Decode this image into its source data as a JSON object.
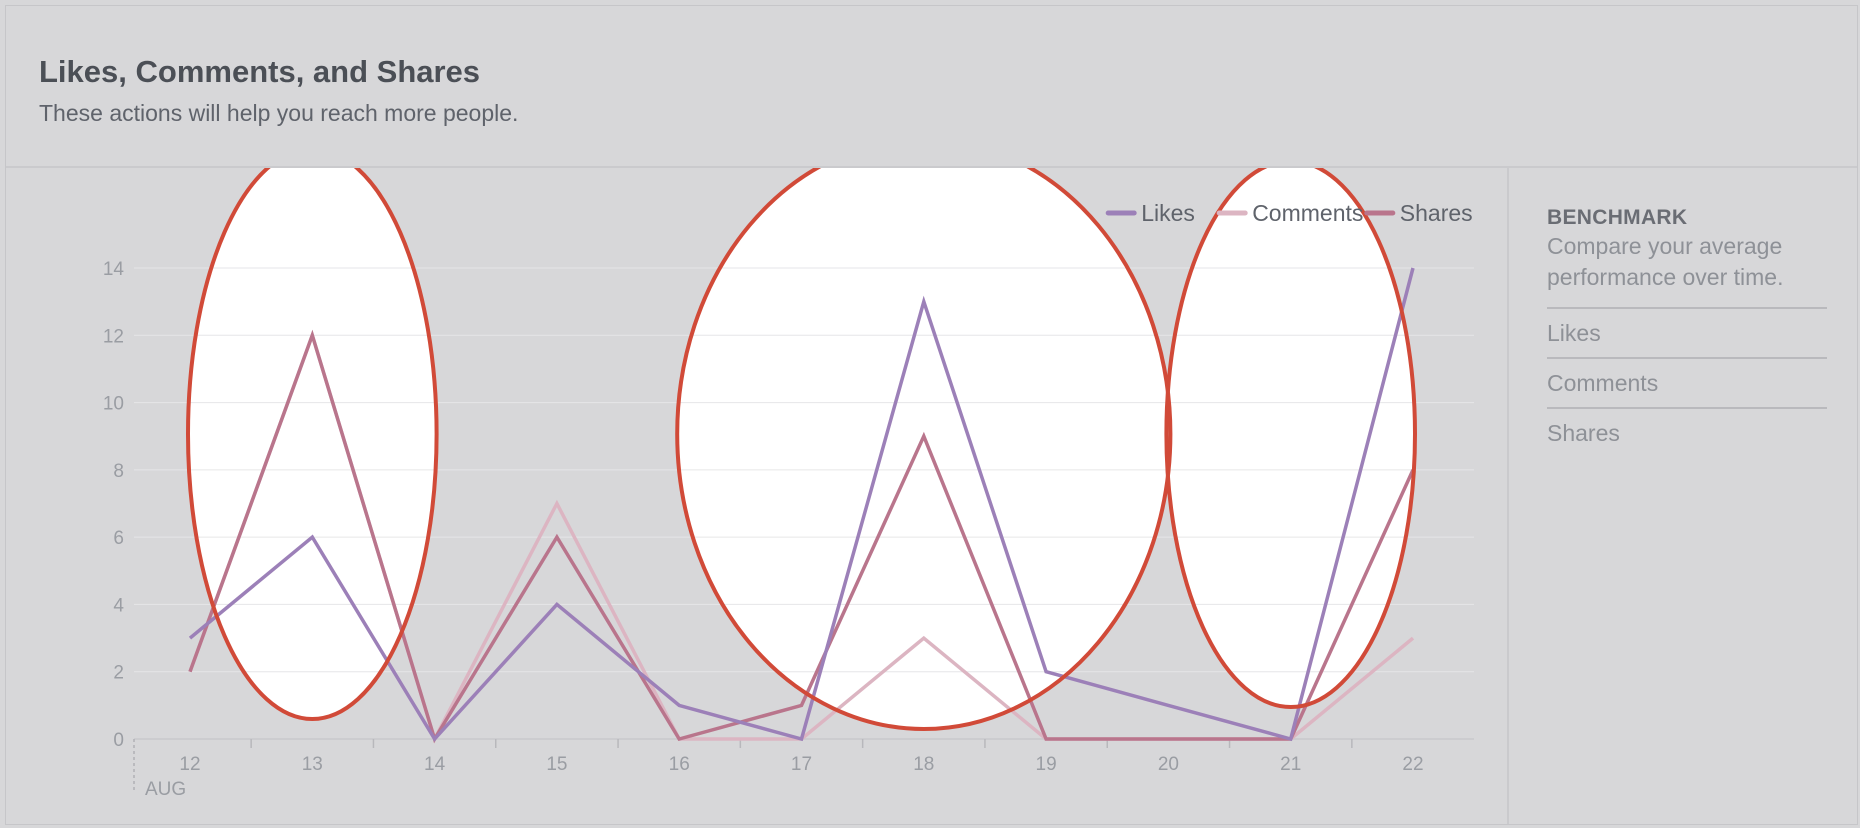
{
  "header": {
    "title": "Likes, Comments, and Shares",
    "subtitle": "These actions will help you reach more people."
  },
  "benchmark": {
    "title": "BENCHMARK",
    "description": "Compare your average performance over time.",
    "items": [
      "Likes",
      "Comments",
      "Shares"
    ]
  },
  "chart_data": {
    "type": "line",
    "x": [
      "12",
      "13",
      "14",
      "15",
      "16",
      "17",
      "18",
      "19",
      "20",
      "21",
      "22"
    ],
    "x_sublabel": "AUG",
    "ylim": [
      0,
      14
    ],
    "yticks": [
      0,
      2,
      4,
      6,
      8,
      10,
      12,
      14
    ],
    "grid": true,
    "legend": "top-right",
    "series": [
      {
        "name": "Likes",
        "color": "#9c80b8",
        "values": [
          3,
          6,
          0,
          4,
          1,
          0,
          13,
          2,
          1,
          0,
          14
        ]
      },
      {
        "name": "Comments",
        "color": "#dcb5c2",
        "values": [
          2,
          12,
          0,
          7,
          0,
          0,
          3,
          0,
          0,
          0,
          3
        ]
      },
      {
        "name": "Shares",
        "color": "#b9758c",
        "values": [
          2,
          12,
          0,
          6,
          0,
          1,
          9,
          0,
          0,
          0,
          8
        ]
      }
    ],
    "highlights": [
      {
        "from": "12",
        "to": "14",
        "color": "#d14a38"
      },
      {
        "from": "16",
        "to": "20",
        "color": "#d14a38"
      },
      {
        "from": "20",
        "to": "22",
        "color": "#d14a38"
      }
    ]
  }
}
